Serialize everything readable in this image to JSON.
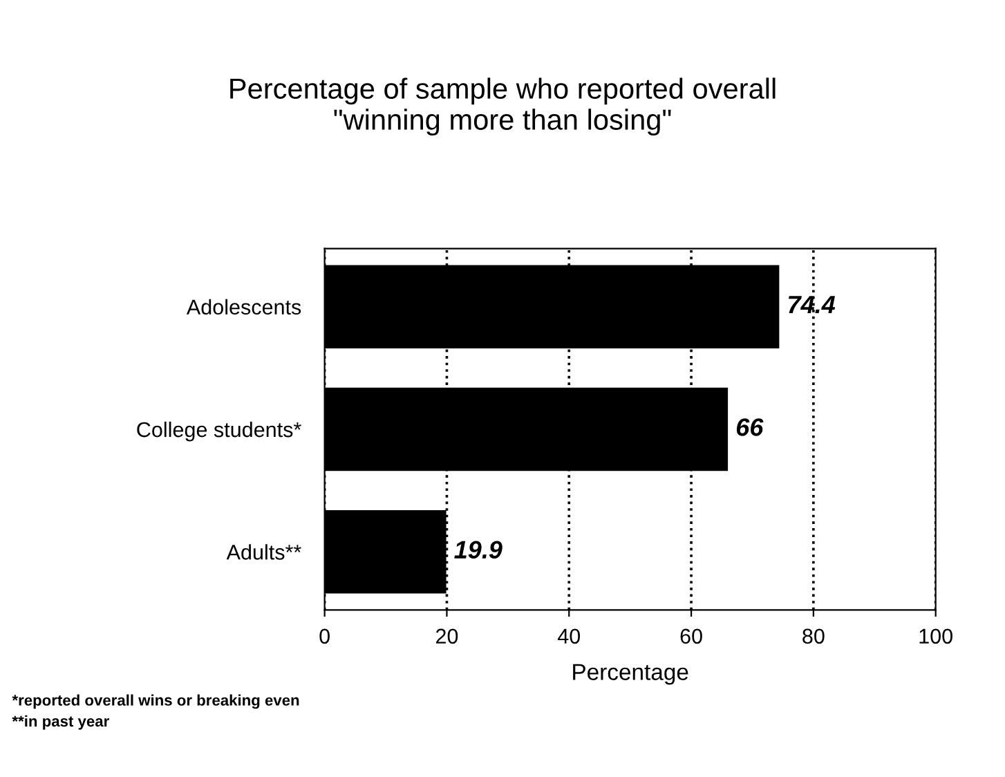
{
  "chart_data": {
    "type": "bar",
    "orientation": "horizontal",
    "title": "Percentage of sample who reported overall\n\"winning more than losing\"",
    "xlabel": "Percentage",
    "categories": [
      "Adolescents",
      "College students*",
      "Adults**"
    ],
    "values": [
      74.4,
      66,
      19.9
    ],
    "color": "#000000",
    "data_labels": true,
    "xlim": [
      0,
      100
    ],
    "xticks": [
      0,
      20,
      40,
      60,
      80,
      100
    ],
    "grid": "x",
    "line_style": "dotted",
    "annotations": [
      "*reported overall wins or breaking even",
      "**in past year"
    ]
  }
}
